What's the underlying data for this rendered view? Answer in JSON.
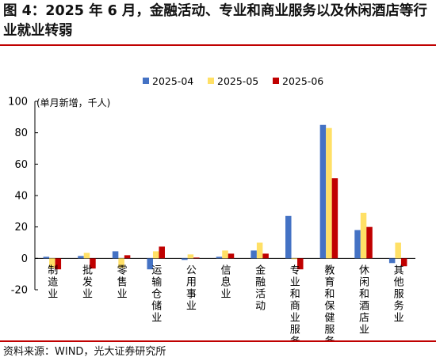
{
  "title": "图 4：2025 年 6 月，金融活动、专业和商业服务以及休闲酒店等行业就业转弱",
  "source": "资料来源：WIND，光大证券研究所",
  "colors": {
    "accent": "#c00000"
  },
  "chart_data": {
    "type": "bar",
    "unit_label": "(单月新增，千人)",
    "categories": [
      "制造业",
      "批发业",
      "零售业",
      "运输仓储业",
      "公用事业",
      "信息业",
      "金融活动",
      "专业和商业服务",
      "教育和保健服务",
      "休闲和酒店业",
      "其他服务业"
    ],
    "series": [
      {
        "name": "2025-04",
        "color": "#4472c4",
        "values": [
          1,
          1.5,
          4.5,
          -7,
          -1,
          1,
          5,
          27,
          85,
          18,
          -3
        ]
      },
      {
        "name": "2025-05",
        "color": "#ffe066",
        "values": [
          -6,
          3.5,
          -6,
          4.5,
          2.5,
          5,
          10,
          -0.5,
          83,
          29,
          10
        ]
      },
      {
        "name": "2025-06",
        "color": "#c00000",
        "values": [
          -7,
          -6.5,
          2,
          7.5,
          0.5,
          3,
          3,
          -7,
          51,
          20,
          -5
        ]
      }
    ],
    "ylim": [
      -20,
      100
    ],
    "yticks": [
      -20,
      0,
      20,
      40,
      60,
      80,
      100
    ],
    "legend_position": "top",
    "grid": false
  }
}
